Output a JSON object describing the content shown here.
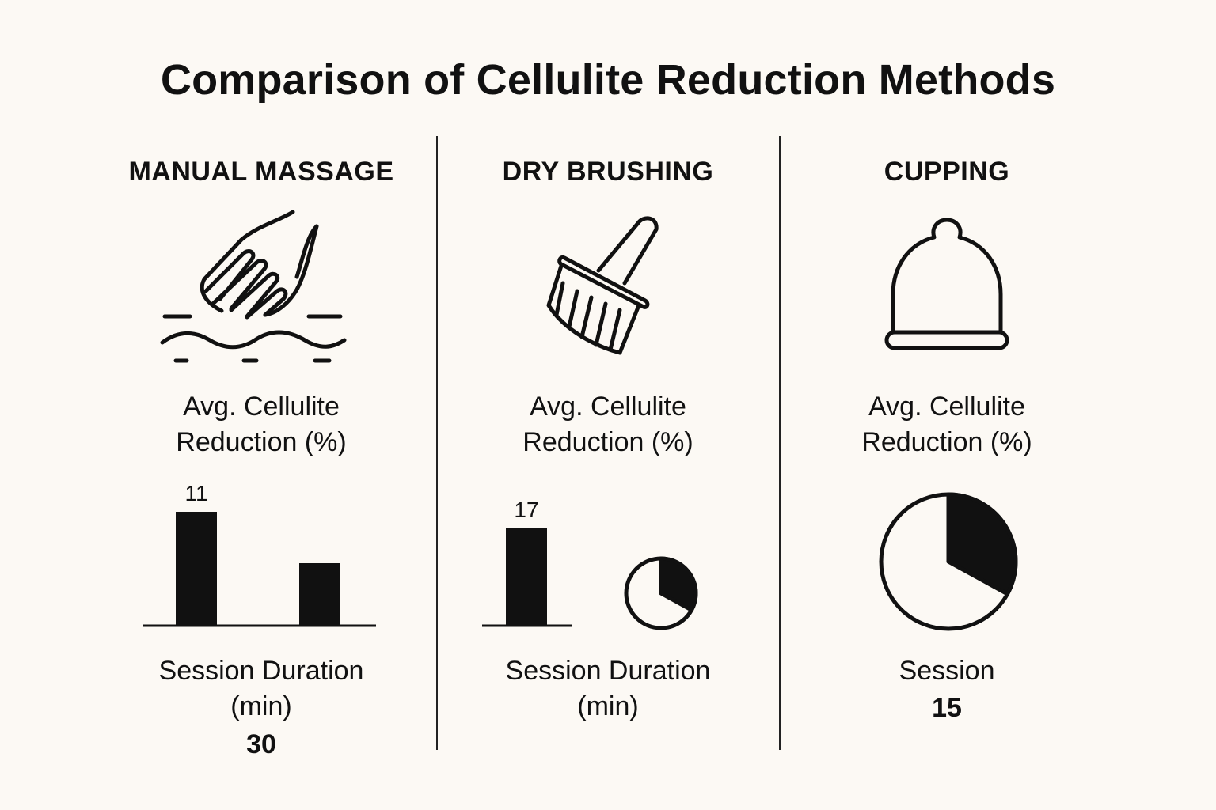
{
  "title": "Comparison of Cellulite Reduction Methods",
  "colors": {
    "background": "#fcf9f4",
    "ink": "#111111"
  },
  "methods": [
    {
      "heading": "MANUAL MASSAGE",
      "icon": "hand-massage-icon",
      "metric_line1": "Avg. Cellulite",
      "metric_line2": "Reduction (%)",
      "caption_line1": "Session Duration",
      "caption_line2": "(min)",
      "session_value": "30"
    },
    {
      "heading": "DRY BRUSHING",
      "icon": "brush-icon",
      "metric_line1": "Avg. Cellulite",
      "metric_line2": "Reduction (%)",
      "caption_line1": "Session Duration",
      "caption_line2": "(min)"
    },
    {
      "heading": "CUPPING",
      "icon": "cup-icon",
      "metric_line1": "Avg. Cellulite",
      "metric_line2": "Reduction (%)",
      "caption_line1": "Session",
      "session_value": "15"
    }
  ],
  "chart_data": [
    {
      "type": "bar",
      "panel": "MANUAL MASSAGE",
      "categories": [
        "",
        ""
      ],
      "values": [
        11,
        6
      ],
      "data_labels": [
        "11",
        ""
      ],
      "ylim": [
        0,
        12
      ]
    },
    {
      "type": "bar",
      "panel": "DRY BRUSHING",
      "categories": [
        ""
      ],
      "values": [
        17
      ],
      "data_labels": [
        "17"
      ],
      "ylim": [
        0,
        17
      ]
    },
    {
      "type": "pie",
      "panel": "DRY BRUSHING",
      "filled_fraction": 0.33
    },
    {
      "type": "pie",
      "panel": "CUPPING",
      "filled_fraction": 0.33
    }
  ]
}
